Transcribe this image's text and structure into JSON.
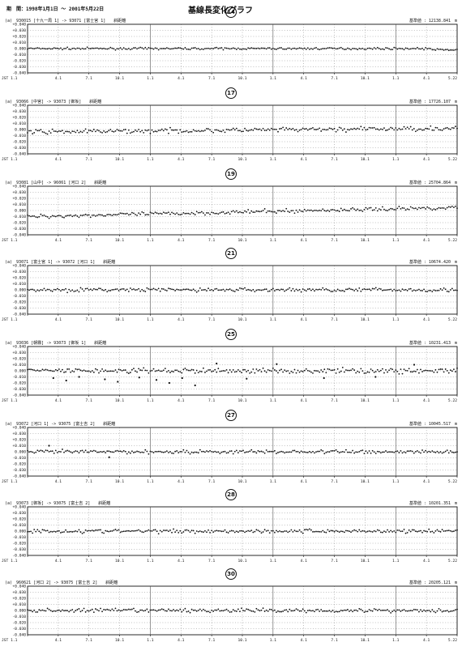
{
  "page": {
    "period": "期　間：1998年1月1日 ～ 2001年5月22日",
    "title": "基線長変化グラフ"
  },
  "chart_data": [
    {
      "type": "scatter",
      "number": "14",
      "series_label": "(a)",
      "header": "930015 [十九一局 1] -> 93071 [富士宮 1]　　斜距離",
      "baseline": "基準値 : 12138.841　m",
      "y_ticks": [
        "+0.040",
        "+0.030",
        "+0.020",
        "+0.010",
        "0.000",
        "-0.010",
        "-0.020",
        "-0.030",
        "-0.040"
      ],
      "ylim": [
        -0.04,
        0.04
      ],
      "x_ticks": [
        "JST 1.1",
        "4.1",
        "7.1",
        "10.1",
        "1.1",
        "4.1",
        "7.1",
        "10.1",
        "1.1",
        "4.1",
        "7.1",
        "10.1",
        "1.1",
        "4.1",
        "5.22"
      ],
      "segments": [
        {
          "x0": 0.0,
          "x1": 0.94,
          "y": 0.0
        },
        {
          "x0": 0.94,
          "x1": 1.0,
          "y": -0.002
        }
      ],
      "scatter": 0.0015,
      "outliers": []
    },
    {
      "type": "scatter",
      "number": "17",
      "series_label": "(a)",
      "header": "93066 [中宮] -> 93073 [御坂]　　斜距離",
      "baseline": "基準値 : 17726.107　m",
      "y_ticks": [
        "+0.040",
        "+0.030",
        "+0.020",
        "+0.010",
        "0.000",
        "-0.010",
        "-0.020",
        "-0.030",
        "-0.040"
      ],
      "ylim": [
        -0.04,
        0.04
      ],
      "x_ticks": [
        "JST 1.1",
        "4.1",
        "7.1",
        "10.1",
        "1.1",
        "4.1",
        "7.1",
        "10.1",
        "1.1",
        "4.1",
        "7.1",
        "10.1",
        "1.1",
        "4.1",
        "5.22"
      ],
      "segments": [
        {
          "x0": 0.0,
          "x1": 1.0,
          "y0": -0.004,
          "y1": 0.002
        }
      ],
      "scatter": 0.0035,
      "outliers": []
    },
    {
      "type": "scatter",
      "number": "19",
      "series_label": "(a)",
      "header": "93081 [山中] -> 96061 [河口 2]　　斜距離",
      "baseline": "基準値 : 25704.864　m",
      "y_ticks": [
        "+0.040",
        "+0.030",
        "+0.020",
        "+0.010",
        "0.000",
        "-0.010",
        "-0.020",
        "-0.030",
        "-0.040"
      ],
      "ylim": [
        -0.04,
        0.04
      ],
      "x_ticks": [
        "JST 1.1",
        "4.1",
        "7.1",
        "10.1",
        "1.1",
        "4.1",
        "7.1",
        "10.1",
        "1.1",
        "4.1",
        "7.1",
        "10.1",
        "1.1",
        "4.1",
        "5.22"
      ],
      "segments": [
        {
          "x0": 0.0,
          "x1": 1.0,
          "y0": -0.01,
          "y1": 0.005
        }
      ],
      "scatter": 0.003,
      "outliers": []
    },
    {
      "type": "scatter",
      "number": "21",
      "series_label": "(a)",
      "header": "93071 [富士宮 1] -> 93072 [河口 1]　　斜距離",
      "baseline": "基準値 : 10674.420　m",
      "y_ticks": [
        "+0.040",
        "+0.030",
        "+0.020",
        "+0.010",
        "0.000",
        "-0.010",
        "-0.020",
        "-0.030",
        "-0.040"
      ],
      "ylim": [
        -0.04,
        0.04
      ],
      "x_ticks": [
        "JST 1.1",
        "4.1",
        "7.1",
        "10.1",
        "1.1",
        "4.1",
        "7.1",
        "10.1",
        "1.1",
        "4.1",
        "7.1",
        "10.1",
        "1.1",
        "4.1",
        "5.22"
      ],
      "segments": [
        {
          "x0": 0.0,
          "x1": 1.0,
          "y": 0.0
        }
      ],
      "scatter": 0.003,
      "outliers": []
    },
    {
      "type": "scatter",
      "number": "25",
      "series_label": "(a)",
      "header": "93036 [朝霧] -> 93073 [御坂 1]　　斜距離",
      "baseline": "基準値 : 10231.413　m",
      "y_ticks": [
        "+0.040",
        "+0.030",
        "+0.020",
        "+0.010",
        "0.000",
        "-0.010",
        "-0.020",
        "-0.030",
        "-0.040"
      ],
      "ylim": [
        -0.04,
        0.04
      ],
      "x_ticks": [
        "JST 1.1",
        "4.1",
        "7.1",
        "10.1",
        "1.1",
        "4.1",
        "7.1",
        "10.1",
        "1.1",
        "4.1",
        "7.1",
        "10.1",
        "1.1",
        "4.1",
        "5.22"
      ],
      "segments": [
        {
          "x0": 0.0,
          "x1": 1.0,
          "y": 0.0
        }
      ],
      "scatter": 0.004,
      "outliers": [
        [
          0.06,
          -0.012
        ],
        [
          0.09,
          -0.016
        ],
        [
          0.12,
          -0.01
        ],
        [
          0.18,
          -0.014
        ],
        [
          0.21,
          -0.018
        ],
        [
          0.26,
          -0.011
        ],
        [
          0.3,
          -0.015
        ],
        [
          0.33,
          -0.02
        ],
        [
          0.36,
          -0.012
        ],
        [
          0.39,
          -0.024
        ],
        [
          0.44,
          0.012
        ],
        [
          0.51,
          -0.013
        ],
        [
          0.58,
          0.011
        ],
        [
          0.69,
          -0.012
        ],
        [
          0.81,
          -0.01
        ],
        [
          0.9,
          0.01
        ]
      ]
    },
    {
      "type": "scatter",
      "number": "27",
      "series_label": "(a)",
      "header": "93072 [河口 1] -> 93075 [富士吉 2]　　斜距離",
      "baseline": "基準値 : 10045.517　m",
      "y_ticks": [
        "+0.040",
        "+0.030",
        "+0.020",
        "+0.010",
        "0.000",
        "-0.010",
        "-0.020",
        "-0.030",
        "-0.040"
      ],
      "ylim": [
        -0.04,
        0.04
      ],
      "x_ticks": [
        "JST 1.1",
        "4.1",
        "7.1",
        "10.1",
        "1.1",
        "4.1",
        "7.1",
        "10.1",
        "1.1",
        "4.1",
        "7.1",
        "10.1",
        "1.1",
        "4.1",
        "5.22"
      ],
      "segments": [
        {
          "x0": 0.0,
          "x1": 1.0,
          "y": 0.0
        }
      ],
      "scatter": 0.003,
      "outliers": [
        [
          0.05,
          0.01
        ],
        [
          0.19,
          -0.009
        ]
      ]
    },
    {
      "type": "scatter",
      "number": "28",
      "series_label": "(a)",
      "header": "93073 [御坂] -> 93075 [富士吉 2]　　斜距離",
      "baseline": "基準値 : 10201.351　m",
      "y_ticks": [
        "+0.040",
        "+0.030",
        "+0.020",
        "+0.010",
        "0.000",
        "-0.010",
        "-0.020",
        "-0.030",
        "-0.040"
      ],
      "ylim": [
        -0.04,
        0.04
      ],
      "x_ticks": [
        "JST 1.1",
        "4.1",
        "7.1",
        "10.1",
        "1.1",
        "4.1",
        "7.1",
        "10.1",
        "1.1",
        "4.1",
        "7.1",
        "10.1",
        "1.1",
        "4.1",
        "5.22"
      ],
      "segments": [
        {
          "x0": 0.0,
          "x1": 1.0,
          "y": 0.0
        }
      ],
      "scatter": 0.003,
      "outliers": []
    },
    {
      "type": "scatter",
      "number": "30",
      "series_label": "(a)",
      "header": "960621 [河口 2] -> 93075 [富士吉 2]　　斜距離",
      "baseline": "基準値 : 20205.121　m",
      "y_ticks": [
        "+0.040",
        "+0.030",
        "+0.020",
        "+0.010",
        "0.000",
        "-0.010",
        "-0.020",
        "-0.030",
        "-0.040"
      ],
      "ylim": [
        -0.04,
        0.04
      ],
      "x_ticks": [
        "JST 1.1",
        "4.1",
        "7.1",
        "10.1",
        "1.1",
        "4.1",
        "7.1",
        "10.1",
        "1.1",
        "4.1",
        "7.1",
        "10.1",
        "1.1",
        "4.1",
        "5.22"
      ],
      "segments": [
        {
          "x0": 0.0,
          "x1": 1.0,
          "y": 0.0
        }
      ],
      "scatter": 0.003,
      "outliers": []
    }
  ]
}
